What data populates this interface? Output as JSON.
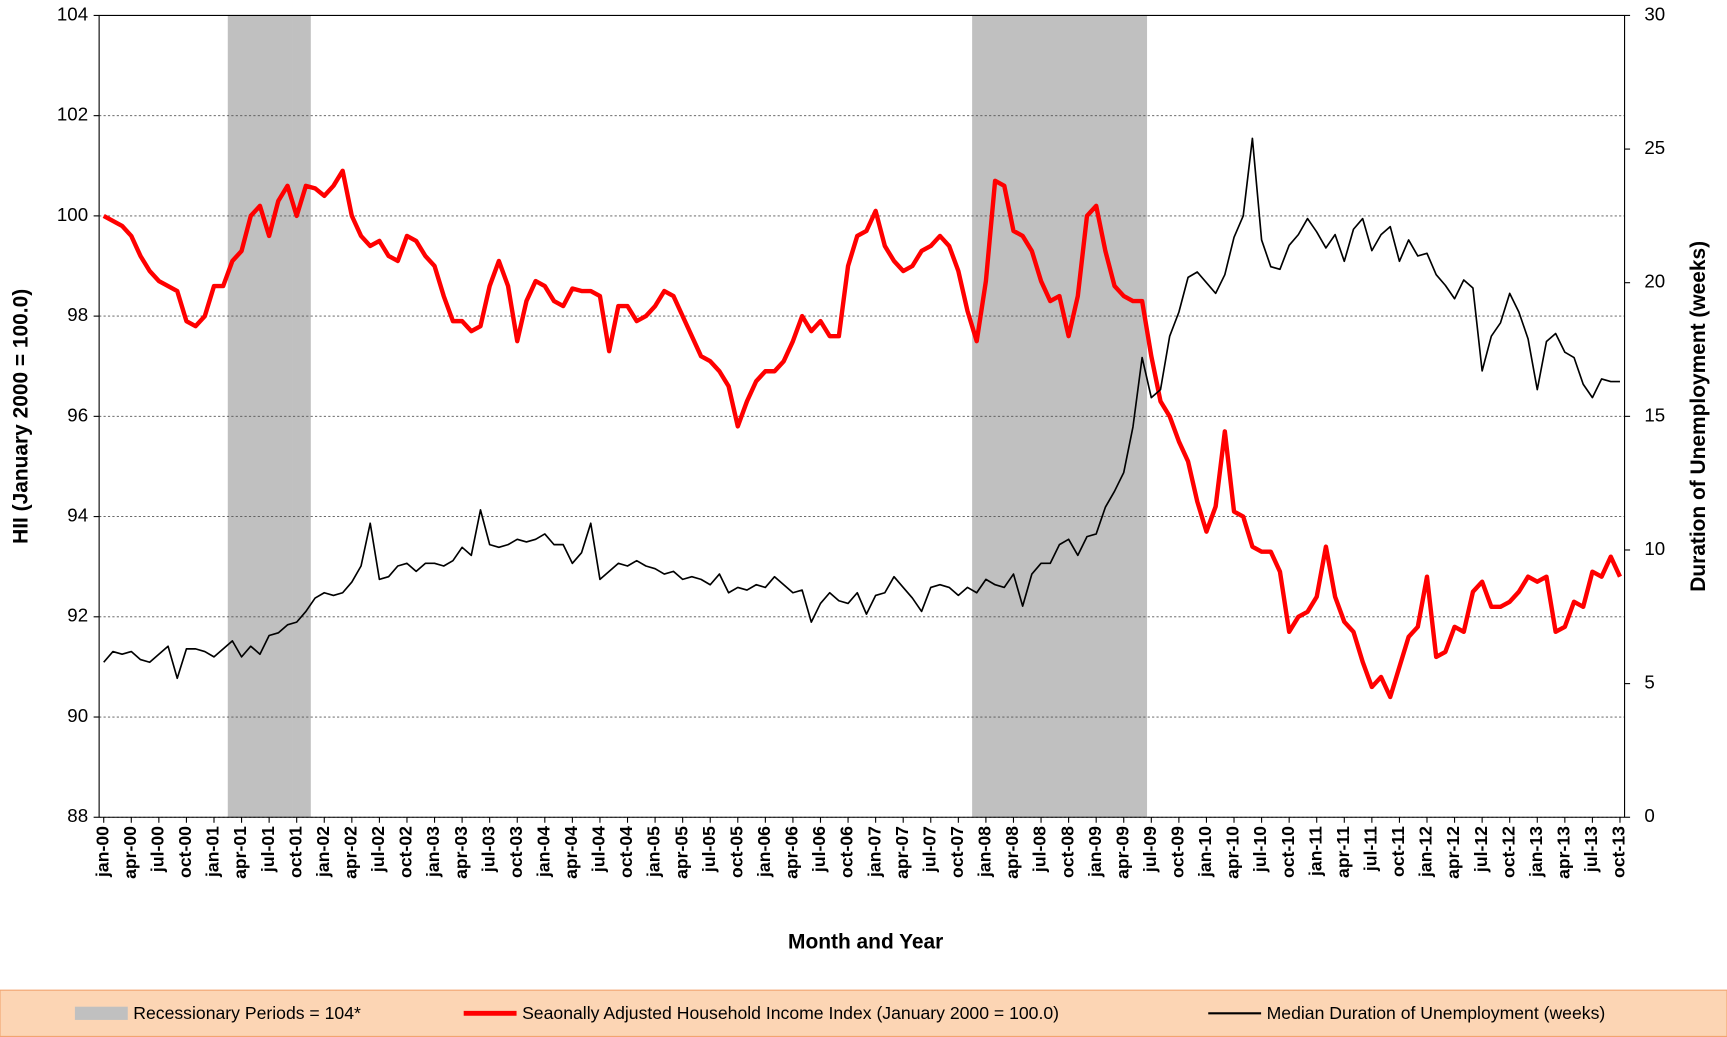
{
  "chart_data": {
    "type": "line",
    "x_label": "Month and Year",
    "y_label": "HII (January 2000 = 100.0)",
    "y2_label": "Duration of Unemployment (weeks)",
    "categories": [
      "jan-00",
      null,
      null,
      "apr-00",
      null,
      null,
      "jul-00",
      null,
      null,
      "oct-00",
      null,
      null,
      "jan-01",
      null,
      null,
      "apr-01",
      null,
      null,
      "jul-01",
      null,
      null,
      "oct-01",
      null,
      null,
      "jan-02",
      null,
      null,
      "apr-02",
      null,
      null,
      "jul-02",
      null,
      null,
      "oct-02",
      null,
      null,
      "jan-03",
      null,
      null,
      "apr-03",
      null,
      null,
      "jul-03",
      null,
      null,
      "oct-03",
      null,
      null,
      "jan-04",
      null,
      null,
      "apr-04",
      null,
      null,
      "jul-04",
      null,
      null,
      "oct-04",
      null,
      null,
      "jan-05",
      null,
      null,
      "apr-05",
      null,
      null,
      "jul-05",
      null,
      null,
      "oct-05",
      null,
      null,
      "jan-06",
      null,
      null,
      "apr-06",
      null,
      null,
      "jul-06",
      null,
      null,
      "oct-06",
      null,
      null,
      "jan-07",
      null,
      null,
      "apr-07",
      null,
      null,
      "jul-07",
      null,
      null,
      "oct-07",
      null,
      null,
      "jan-08",
      null,
      null,
      "apr-08",
      null,
      null,
      "jul-08",
      null,
      null,
      "oct-08",
      null,
      null,
      "jan-09",
      null,
      null,
      "apr-09",
      null,
      null,
      "jul-09",
      null,
      null,
      "oct-09",
      null,
      null,
      "jan-10",
      null,
      null,
      "apr-10",
      null,
      null,
      "jul-10",
      null,
      null,
      "oct-10",
      null,
      null,
      "jan-11",
      null,
      null,
      "apr-11",
      null,
      null,
      "jul-11",
      null,
      null,
      "oct-11",
      null,
      null,
      "jan-12",
      null,
      null,
      "apr-12",
      null,
      null,
      "jul-12",
      null,
      null,
      "oct-12",
      null,
      null,
      "jan-13",
      null,
      null,
      "apr-13",
      null,
      null,
      "jul-13",
      null,
      null,
      "oct-13"
    ],
    "series": [
      {
        "name": "Recessionary Periods = 104*",
        "type": "bar",
        "color": "#c0c0c0",
        "values": [
          null,
          null,
          null,
          null,
          null,
          null,
          null,
          null,
          null,
          null,
          null,
          null,
          null,
          null,
          104,
          104,
          104,
          104,
          104,
          104,
          104,
          104,
          104,
          null,
          null,
          null,
          null,
          null,
          null,
          null,
          null,
          null,
          null,
          null,
          null,
          null,
          null,
          null,
          null,
          null,
          null,
          null,
          null,
          null,
          null,
          null,
          null,
          null,
          null,
          null,
          null,
          null,
          null,
          null,
          null,
          null,
          null,
          null,
          null,
          null,
          null,
          null,
          null,
          null,
          null,
          null,
          null,
          null,
          null,
          null,
          null,
          null,
          null,
          null,
          null,
          null,
          null,
          null,
          null,
          null,
          null,
          null,
          null,
          null,
          null,
          null,
          null,
          null,
          null,
          null,
          null,
          null,
          null,
          null,
          null,
          104,
          104,
          104,
          104,
          104,
          104,
          104,
          104,
          104,
          104,
          104,
          104,
          104,
          104,
          104,
          104,
          104,
          104,
          104,
          null,
          null,
          null,
          null,
          null,
          null,
          null,
          null,
          null,
          null,
          null,
          null,
          null,
          null,
          null,
          null,
          null,
          null,
          null,
          null,
          null,
          null,
          null,
          null,
          null,
          null,
          null,
          null,
          null,
          null,
          null,
          null,
          null,
          null,
          null,
          null,
          null,
          null,
          null,
          null,
          null,
          null,
          null,
          null,
          null,
          null,
          null,
          null,
          null,
          null,
          null,
          null
        ]
      },
      {
        "name": "Seaonally Adjusted Household Income Index (January 2000 = 100.0)",
        "type": "line",
        "color": "#ff0000",
        "line_width": 4,
        "values": [
          100.0,
          99.9,
          99.8,
          99.6,
          99.2,
          98.9,
          98.7,
          98.6,
          98.5,
          97.9,
          97.8,
          98.0,
          98.6,
          98.6,
          99.1,
          99.3,
          100.0,
          100.2,
          99.6,
          100.3,
          100.6,
          100.0,
          100.6,
          100.55,
          100.4,
          100.6,
          100.9,
          100.0,
          99.6,
          99.4,
          99.5,
          99.2,
          99.1,
          99.6,
          99.5,
          99.2,
          99.0,
          98.4,
          97.9,
          97.9,
          97.7,
          97.8,
          98.6,
          99.1,
          98.6,
          97.5,
          98.3,
          98.7,
          98.6,
          98.3,
          98.2,
          98.55,
          98.5,
          98.5,
          98.4,
          97.3,
          98.2,
          98.2,
          97.9,
          98.0,
          98.2,
          98.5,
          98.4,
          98.0,
          97.6,
          97.2,
          97.1,
          96.9,
          96.6,
          95.8,
          96.3,
          96.7,
          96.9,
          96.9,
          97.1,
          97.5,
          98.0,
          97.7,
          97.9,
          97.6,
          97.6,
          99.0,
          99.6,
          99.7,
          100.1,
          99.4,
          99.1,
          98.9,
          99.0,
          99.3,
          99.4,
          99.6,
          99.4,
          98.9,
          98.1,
          97.5,
          98.7,
          100.7,
          100.6,
          99.7,
          99.6,
          99.3,
          98.7,
          98.3,
          98.4,
          97.6,
          98.4,
          100.0,
          100.2,
          99.3,
          98.6,
          98.4,
          98.3,
          98.3,
          97.2,
          96.3,
          96.0,
          95.5,
          95.1,
          94.3,
          93.7,
          94.2,
          95.7,
          94.1,
          94.0,
          93.4,
          93.3,
          93.3,
          92.9,
          91.7,
          92.0,
          92.1,
          92.4,
          93.4,
          92.4,
          91.9,
          91.7,
          91.1,
          90.6,
          90.8,
          90.4,
          91.0,
          91.6,
          91.8,
          92.8,
          91.2,
          91.3,
          91.8,
          91.7,
          92.5,
          92.7,
          92.2,
          92.2,
          92.3,
          92.5,
          92.8,
          92.7,
          92.8,
          91.7,
          91.8,
          92.3,
          92.2,
          92.9,
          92.8,
          93.2,
          92.8
        ]
      },
      {
        "name": "Median Duration of Unemployment (weeks)",
        "type": "line",
        "color": "#000000",
        "line_width": 1.5,
        "axis": "y2",
        "values": [
          5.8,
          6.2,
          6.1,
          6.2,
          5.9,
          5.8,
          6.1,
          6.4,
          5.2,
          6.3,
          6.3,
          6.2,
          6.0,
          6.3,
          6.6,
          6.0,
          6.4,
          6.1,
          6.8,
          6.9,
          7.2,
          7.3,
          7.7,
          8.2,
          8.4,
          8.3,
          8.4,
          8.8,
          9.4,
          11.0,
          8.9,
          9.0,
          9.4,
          9.5,
          9.2,
          9.5,
          9.5,
          9.4,
          9.6,
          10.1,
          9.8,
          11.5,
          10.2,
          10.1,
          10.2,
          10.4,
          10.3,
          10.4,
          10.6,
          10.2,
          10.2,
          9.5,
          9.9,
          11.0,
          8.9,
          9.2,
          9.5,
          9.4,
          9.6,
          9.4,
          9.3,
          9.1,
          9.2,
          8.9,
          9.0,
          8.9,
          8.7,
          9.1,
          8.4,
          8.6,
          8.5,
          8.7,
          8.6,
          9.0,
          8.7,
          8.4,
          8.5,
          7.3,
          8.0,
          8.4,
          8.1,
          8.0,
          8.4,
          7.6,
          8.3,
          8.4,
          9.0,
          8.6,
          8.2,
          7.7,
          8.6,
          8.7,
          8.6,
          8.3,
          8.6,
          8.4,
          8.9,
          8.7,
          8.6,
          9.1,
          7.9,
          9.1,
          9.5,
          9.5,
          10.2,
          10.4,
          9.8,
          10.5,
          10.6,
          11.6,
          12.2,
          12.9,
          14.6,
          17.2,
          15.7,
          16.0,
          18.0,
          18.9,
          20.2,
          20.4,
          20.0,
          19.6,
          20.3,
          21.7,
          22.5,
          25.4,
          21.6,
          20.6,
          20.5,
          21.4,
          21.8,
          22.4,
          21.9,
          21.3,
          21.8,
          20.8,
          22.0,
          22.4,
          21.2,
          21.8,
          22.1,
          20.8,
          21.6,
          21.0,
          21.1,
          20.3,
          19.9,
          19.4,
          20.1,
          19.8,
          16.7,
          18.0,
          18.5,
          19.6,
          18.9,
          17.9,
          16.0,
          17.8,
          18.1,
          17.4,
          17.2,
          16.2,
          15.7,
          16.4,
          16.3,
          16.3
        ]
      }
    ],
    "ylim": [
      88,
      104
    ],
    "yticks": [
      88,
      90,
      92,
      94,
      96,
      98,
      100,
      102,
      104
    ],
    "y2lim": [
      0,
      30
    ],
    "y2ticks": [
      0,
      5,
      10,
      15,
      20,
      25,
      30
    ],
    "grid": true,
    "legend": "bottom"
  }
}
